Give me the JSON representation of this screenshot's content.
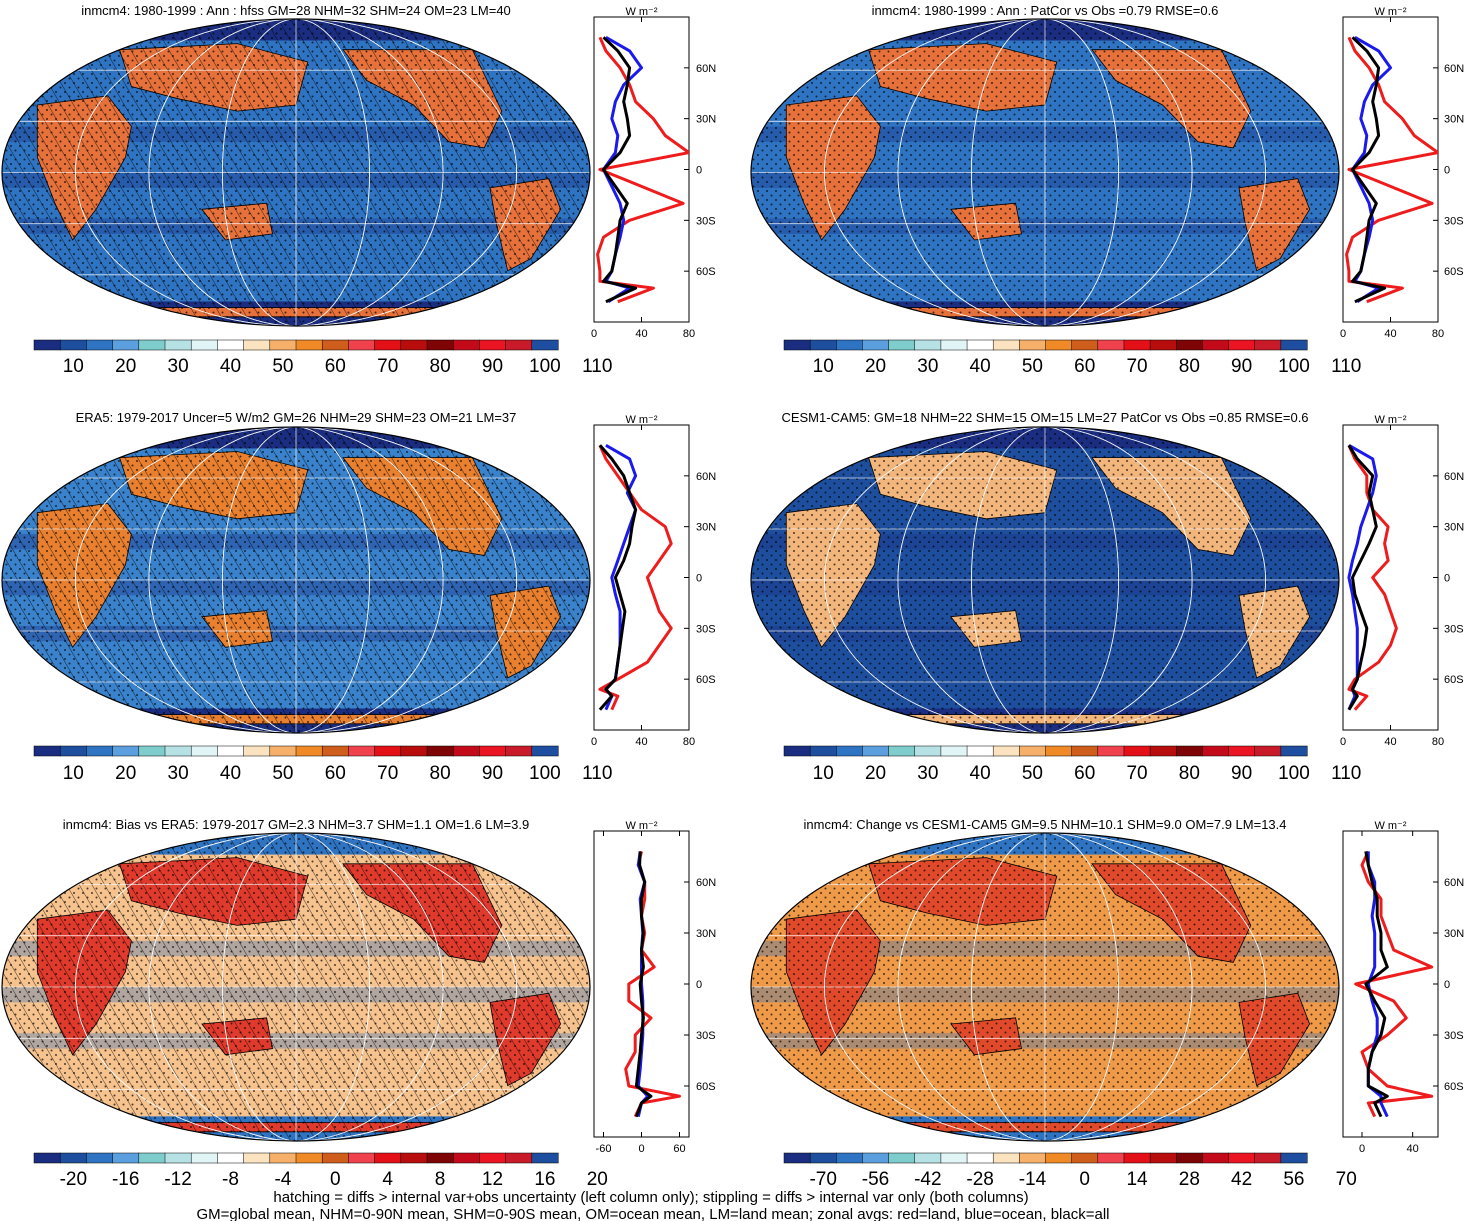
{
  "figure": {
    "footer": [
      "hatching = diffs > internal var+obs uncertainty (left column only); stippling = diffs > internal var only (both columns)",
      "GM=global mean, NHM=0-90N mean, SHM=0-90S mean, OM=ocean mean, LM=land mean; zonal avgs: red=land, blue=ocean, black=all"
    ],
    "zonal_unit": "W m⁻²",
    "lat_ticks": [
      "60N",
      "30N",
      "0",
      "30S",
      "60S"
    ]
  },
  "panels": [
    {
      "title": "inmcm4: 1980-1999 : Ann : hfss GM=28 NHM=32 SHM=24 OM=23 LM=40",
      "colorbar_labels": [
        "10",
        "20",
        "30",
        "40",
        "50",
        "60",
        "70",
        "80",
        "90",
        "100",
        "110"
      ],
      "palette": [
        "#1a2d80",
        "#1e4f9e",
        "#2f74c2",
        "#5c9fde",
        "#7fcccc",
        "#b6e2e6",
        "#e1f5f7",
        "#ffffff",
        "#fbe3c0",
        "#f7b06a",
        "#f08a27",
        "#cf5d1b",
        "#f0424c",
        "#e31018",
        "#b80d0d",
        "#7e0405",
        "#c30a1a",
        "#ea1423",
        "#c81a28",
        "#1d4ea0"
      ],
      "map": {
        "base": "#2f74c2",
        "dark": "#1a2d80",
        "land": "#e6713a",
        "hatch": true
      },
      "zonal_xlim": [
        0,
        80
      ],
      "zonal_xticks": [
        "0",
        "40",
        "80"
      ]
    },
    {
      "title": "inmcm4: 1980-1999 : Ann : PatCor vs Obs =0.79 RMSE=0.6",
      "colorbar_labels": [
        "10",
        "20",
        "30",
        "40",
        "50",
        "60",
        "70",
        "80",
        "90",
        "100",
        "110"
      ],
      "palette": [
        "#1a2d80",
        "#1e4f9e",
        "#2f74c2",
        "#5c9fde",
        "#7fcccc",
        "#b6e2e6",
        "#e1f5f7",
        "#ffffff",
        "#fbe3c0",
        "#f7b06a",
        "#f08a27",
        "#cf5d1b",
        "#f0424c",
        "#e31018",
        "#b80d0d",
        "#7e0405",
        "#c30a1a",
        "#ea1423",
        "#c81a28",
        "#1d4ea0"
      ],
      "map": {
        "base": "#2f74c2",
        "dark": "#1a2d80",
        "land": "#e6713a",
        "hatch": false
      },
      "zonal_xlim": [
        0,
        80
      ],
      "zonal_xticks": [
        "0",
        "40",
        "80"
      ]
    },
    {
      "title": "ERA5: 1979-2017 Uncer=5 W/m2 GM=26 NHM=29 SHM=23 OM=21 LM=37",
      "colorbar_labels": [
        "10",
        "20",
        "30",
        "40",
        "50",
        "60",
        "70",
        "80",
        "90",
        "100",
        "110"
      ],
      "palette": [
        "#1a2d80",
        "#1e4f9e",
        "#2f74c2",
        "#5c9fde",
        "#7fcccc",
        "#b6e2e6",
        "#e1f5f7",
        "#ffffff",
        "#fbe3c0",
        "#f7b06a",
        "#f08a27",
        "#cf5d1b",
        "#f0424c",
        "#e31018",
        "#b80d0d",
        "#7e0405",
        "#c30a1a",
        "#ea1423",
        "#c81a28",
        "#1d4ea0"
      ],
      "map": {
        "base": "#3a82cc",
        "dark": "#1a2d80",
        "land": "#e8802f",
        "hatch": true
      },
      "zonal_xlim": [
        0,
        80
      ],
      "zonal_xticks": [
        "0",
        "40",
        "80"
      ]
    },
    {
      "title": "CESM1-CAM5: GM=18 NHM=22 SHM=15 OM=15 LM=27 PatCor vs Obs =0.85 RMSE=0.6",
      "colorbar_labels": [
        "10",
        "20",
        "30",
        "40",
        "50",
        "60",
        "70",
        "80",
        "90",
        "100",
        "110"
      ],
      "palette": [
        "#1a2d80",
        "#1e4f9e",
        "#2f74c2",
        "#5c9fde",
        "#7fcccc",
        "#b6e2e6",
        "#e1f5f7",
        "#ffffff",
        "#fbe3c0",
        "#f7b06a",
        "#f08a27",
        "#cf5d1b",
        "#f0424c",
        "#e31018",
        "#b80d0d",
        "#7e0405",
        "#c30a1a",
        "#ea1423",
        "#c81a28",
        "#1d4ea0"
      ],
      "map": {
        "base": "#1e4f9e",
        "dark": "#1a2d80",
        "land": "#f2b57c",
        "hatch": false
      },
      "zonal_xlim": [
        0,
        80
      ],
      "zonal_xticks": [
        "0",
        "40",
        "80"
      ]
    },
    {
      "title": "inmcm4: Bias vs ERA5: 1979-2017 GM=2.3 NHM=3.7 SHM=1.1 OM=1.6 LM=3.9",
      "colorbar_labels": [
        "-20",
        "-16",
        "-12",
        "-8",
        "-4",
        "0",
        "4",
        "8",
        "12",
        "16",
        "20"
      ],
      "palette": [
        "#1a2d80",
        "#1e4f9e",
        "#2f74c2",
        "#5c9fde",
        "#7fcccc",
        "#b6e2e6",
        "#e1f5f7",
        "#ffffff",
        "#fbe3c0",
        "#f7b06a",
        "#f08a27",
        "#cf5d1b",
        "#f0424c",
        "#e31018",
        "#b80d0d",
        "#7e0405",
        "#c30a1a",
        "#ea1423",
        "#c81a28",
        "#1d4ea0"
      ],
      "map": {
        "base": "#f6c28d",
        "dark": "#2f74c2",
        "land": "#e03a2c",
        "hatch": true
      },
      "zonal_xlim": [
        -75,
        75
      ],
      "zonal_xticks": [
        "-60",
        "0",
        "60"
      ]
    },
    {
      "title": "inmcm4: Change vs CESM1-CAM5 GM=9.5 NHM=10.1 SHM=9.0 OM=7.9 LM=13.4",
      "colorbar_labels": [
        "-70",
        "-56",
        "-42",
        "-28",
        "-14",
        "0",
        "14",
        "28",
        "42",
        "56",
        "70"
      ],
      "palette": [
        "#1a2d80",
        "#1e4f9e",
        "#2f74c2",
        "#5c9fde",
        "#7fcccc",
        "#b6e2e6",
        "#e1f5f7",
        "#ffffff",
        "#fbe3c0",
        "#f7b06a",
        "#f08a27",
        "#cf5d1b",
        "#f0424c",
        "#e31018",
        "#b80d0d",
        "#7e0405",
        "#c30a1a",
        "#ea1423",
        "#c81a28",
        "#1d4ea0"
      ],
      "map": {
        "base": "#ee9a48",
        "dark": "#2f74c2",
        "land": "#e04a2a",
        "hatch": false
      },
      "zonal_xlim": [
        -15,
        60
      ],
      "zonal_xticks": [
        "0",
        "40"
      ]
    }
  ],
  "chart_data": [
    {
      "type": "line",
      "title": "inmcm4: 1980-1999 : Ann : hfss GM=28 NHM=32 SHM=24 OM=23 LM=40",
      "xlabel": "W m⁻²",
      "xlim": [
        0,
        80
      ],
      "lat": [
        -78,
        -70,
        -66,
        -60,
        -50,
        -40,
        -30,
        -20,
        -10,
        0,
        10,
        20,
        30,
        40,
        50,
        60,
        70,
        78
      ],
      "series": [
        {
          "name": "land",
          "color": "red",
          "values": [
            20,
            50,
            5,
            5,
            3,
            8,
            30,
            75,
            40,
            5,
            80,
            60,
            50,
            35,
            30,
            22,
            10,
            5
          ]
        },
        {
          "name": "ocean",
          "color": "blue",
          "values": [
            12,
            30,
            10,
            15,
            18,
            22,
            25,
            22,
            15,
            8,
            18,
            20,
            15,
            18,
            25,
            40,
            30,
            10
          ]
        },
        {
          "name": "all",
          "color": "black",
          "values": [
            10,
            35,
            8,
            15,
            18,
            20,
            22,
            28,
            18,
            8,
            22,
            30,
            28,
            25,
            28,
            30,
            20,
            8
          ]
        }
      ]
    },
    {
      "type": "line",
      "title": "inmcm4: 1980-1999 : Ann : PatCor vs Obs =0.79 RMSE=0.6",
      "xlabel": "W m⁻²",
      "xlim": [
        0,
        80
      ],
      "lat": [
        -78,
        -70,
        -66,
        -60,
        -50,
        -40,
        -30,
        -20,
        -10,
        0,
        10,
        20,
        30,
        40,
        50,
        60,
        70,
        78
      ],
      "series": [
        {
          "name": "land",
          "color": "red",
          "values": [
            20,
            50,
            5,
            5,
            3,
            8,
            30,
            75,
            40,
            5,
            80,
            60,
            50,
            35,
            30,
            22,
            10,
            5
          ]
        },
        {
          "name": "ocean",
          "color": "blue",
          "values": [
            12,
            30,
            10,
            15,
            18,
            22,
            25,
            22,
            15,
            8,
            18,
            20,
            15,
            18,
            25,
            40,
            30,
            10
          ]
        },
        {
          "name": "all",
          "color": "black",
          "values": [
            10,
            35,
            8,
            15,
            18,
            20,
            22,
            28,
            18,
            8,
            22,
            30,
            28,
            25,
            28,
            30,
            20,
            8
          ]
        }
      ]
    },
    {
      "type": "line",
      "title": "ERA5: 1979-2017 Uncer=5 W/m2 GM=26 NHM=29 SHM=23 OM=21 LM=37",
      "xlabel": "W m⁻²",
      "xlim": [
        0,
        80
      ],
      "lat": [
        -78,
        -70,
        -66,
        -60,
        -50,
        -40,
        -30,
        -20,
        -10,
        0,
        10,
        20,
        30,
        40,
        50,
        60,
        70,
        78
      ],
      "series": [
        {
          "name": "land",
          "color": "red",
          "values": [
            15,
            20,
            5,
            20,
            45,
            55,
            65,
            55,
            50,
            45,
            55,
            65,
            60,
            40,
            30,
            20,
            10,
            5
          ]
        },
        {
          "name": "ocean",
          "color": "blue",
          "values": [
            10,
            15,
            10,
            18,
            20,
            22,
            22,
            22,
            18,
            15,
            20,
            25,
            30,
            35,
            28,
            35,
            30,
            10
          ]
        },
        {
          "name": "all",
          "color": "black",
          "values": [
            5,
            15,
            10,
            18,
            20,
            22,
            24,
            26,
            22,
            18,
            25,
            30,
            32,
            35,
            30,
            25,
            15,
            5
          ]
        }
      ]
    },
    {
      "type": "line",
      "title": "CESM1-CAM5: GM=18 NHM=22 SHM=15 OM=15 LM=27 PatCor vs Obs =0.85 RMSE=0.6",
      "xlabel": "W m⁻²",
      "xlim": [
        0,
        80
      ],
      "lat": [
        -78,
        -70,
        -66,
        -60,
        -50,
        -40,
        -30,
        -20,
        -10,
        0,
        10,
        20,
        30,
        40,
        50,
        60,
        70,
        78
      ],
      "series": [
        {
          "name": "land",
          "color": "red",
          "values": [
            10,
            20,
            5,
            10,
            30,
            40,
            45,
            40,
            35,
            25,
            38,
            35,
            38,
            25,
            20,
            20,
            10,
            5
          ]
        },
        {
          "name": "ocean",
          "color": "blue",
          "values": [
            5,
            10,
            8,
            12,
            12,
            12,
            12,
            10,
            8,
            5,
            8,
            12,
            15,
            20,
            25,
            28,
            25,
            5
          ]
        },
        {
          "name": "all",
          "color": "black",
          "values": [
            5,
            12,
            8,
            12,
            15,
            18,
            20,
            15,
            10,
            8,
            15,
            22,
            28,
            25,
            22,
            25,
            12,
            5
          ]
        }
      ]
    },
    {
      "type": "line",
      "title": "inmcm4: Bias vs ERA5: 1979-2017 GM=2.3 NHM=3.7 SHM=1.1 OM=1.6 LM=3.9",
      "xlabel": "W m⁻²",
      "xlim": [
        -75,
        75
      ],
      "lat": [
        -78,
        -70,
        -66,
        -60,
        -50,
        -40,
        -30,
        -20,
        -10,
        0,
        10,
        20,
        30,
        40,
        50,
        60,
        70,
        78
      ],
      "series": [
        {
          "name": "land",
          "color": "red",
          "values": [
            -10,
            0,
            60,
            -20,
            -25,
            -10,
            -10,
            15,
            -20,
            -20,
            20,
            0,
            5,
            0,
            5,
            5,
            -5,
            0
          ]
        },
        {
          "name": "ocean",
          "color": "blue",
          "values": [
            -5,
            0,
            10,
            -5,
            -2,
            0,
            2,
            2,
            2,
            0,
            0,
            0,
            2,
            0,
            -2,
            5,
            -5,
            -2
          ]
        },
        {
          "name": "all",
          "color": "black",
          "values": [
            -8,
            0,
            15,
            -8,
            -5,
            -2,
            0,
            3,
            0,
            -2,
            3,
            0,
            3,
            0,
            0,
            5,
            -3,
            -2
          ]
        }
      ]
    },
    {
      "type": "line",
      "title": "inmcm4: Change vs CESM1-CAM5 GM=9.5 NHM=10.1 SHM=9.0 OM=7.9 LM=13.4",
      "xlabel": "W m⁻²",
      "xlim": [
        -15,
        60
      ],
      "lat": [
        -78,
        -70,
        -66,
        -60,
        -50,
        -40,
        -30,
        -20,
        -10,
        0,
        10,
        20,
        30,
        40,
        50,
        60,
        70,
        78
      ],
      "series": [
        {
          "name": "land",
          "color": "red",
          "values": [
            10,
            5,
            55,
            20,
            5,
            0,
            20,
            35,
            25,
            -5,
            55,
            25,
            20,
            15,
            15,
            5,
            0,
            5
          ]
        },
        {
          "name": "ocean",
          "color": "blue",
          "values": [
            20,
            15,
            15,
            5,
            5,
            8,
            12,
            12,
            8,
            5,
            10,
            10,
            10,
            8,
            10,
            10,
            5,
            5
          ]
        },
        {
          "name": "all",
          "color": "black",
          "values": [
            15,
            10,
            20,
            5,
            5,
            8,
            15,
            18,
            10,
            3,
            20,
            15,
            15,
            12,
            12,
            8,
            5,
            3
          ]
        }
      ]
    }
  ]
}
